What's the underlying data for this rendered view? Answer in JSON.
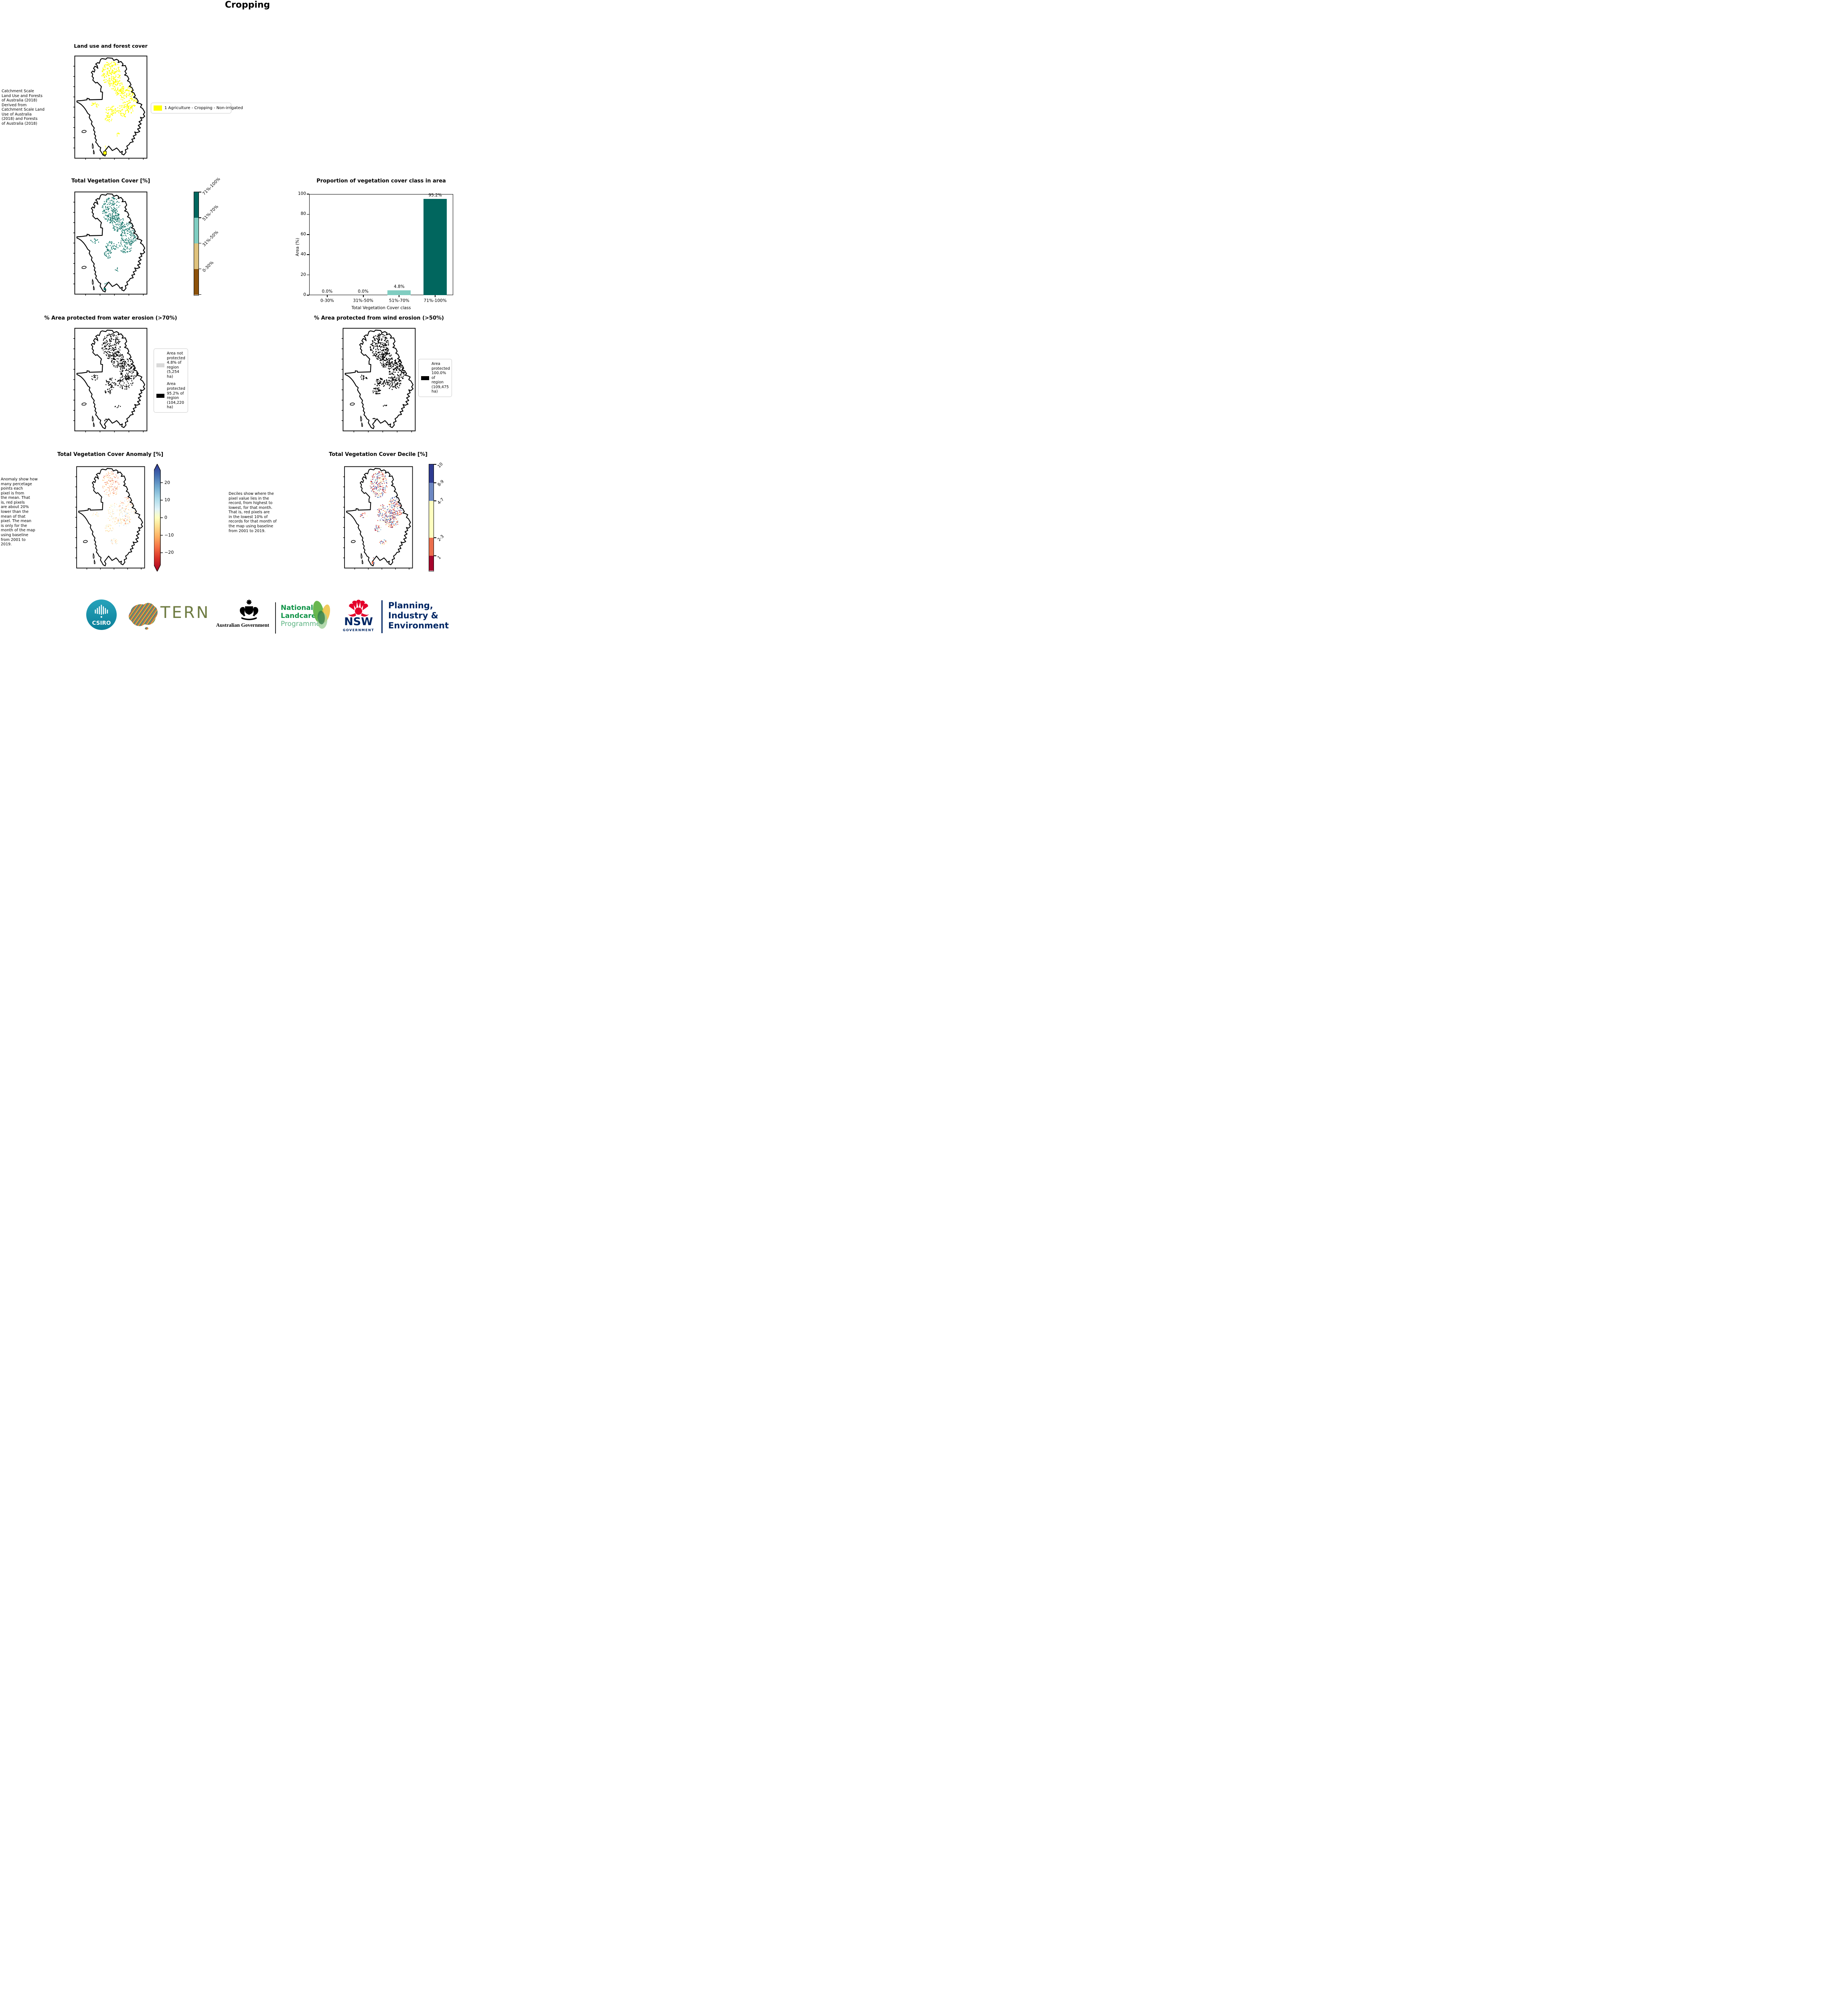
{
  "page": {
    "title": "Cropping"
  },
  "chart_data": {
    "type": "bar",
    "title": "Proportion of vegetation cover class in area",
    "categories": [
      "0-30%",
      "31%-50%",
      "51%-70%",
      "71%-100%"
    ],
    "values": [
      0.0,
      0.0,
      4.8,
      95.2
    ],
    "bar_labels": [
      "0.0%",
      "0.0%",
      "4.8%",
      "95.2%"
    ],
    "bar_colors": [
      "#01665e",
      "#01665e",
      "#80cdc1",
      "#01665e"
    ],
    "xlabel": "Total Vegetation Cover class",
    "ylabel": "Area (%)",
    "ylim": [
      0,
      100
    ],
    "yticks": [
      0,
      20,
      40,
      60,
      80,
      100
    ],
    "grid": false,
    "legend_position": "none"
  },
  "land_use": {
    "title": "Land use and forest cover",
    "note": " Catchment Scale\nLand Use and Forests\nof Australia (2018)\nDerived from\nCatchment Scale Land\nUse of Australia\n(2018) and Forests\nof Australia (2018)",
    "legend_label": "1 Agriculture - Cropping - Non-irrigated",
    "legend_color": "#ffff00"
  },
  "veg_cover": {
    "title": "Total Vegetation Cover [%]",
    "classes": [
      "71%-100%",
      "51%-70%",
      "31%-50%",
      "0-30%"
    ],
    "class_colors": [
      "#01665e",
      "#80cdc1",
      "#dfc27d",
      "#8c510a"
    ]
  },
  "water_erosion": {
    "title": "% Area protected from water erosion (>70%)",
    "legend": [
      {
        "label": "Area not\nprotected\n4.8% of\nregion\n(5,254 ha)",
        "color": "#d9d9d9"
      },
      {
        "label": "Area\nprotected\n95.2% of\nregion\n(104,220\nha)",
        "color": "#000000"
      }
    ]
  },
  "wind_erosion": {
    "title": "% Area protected from wind erosion (>50%)",
    "legend": [
      {
        "label": "Area\nprotected\n100.0% of\nregion\n(109,475\nha)",
        "color": "#000000"
      }
    ]
  },
  "anomaly": {
    "title": "Total Vegetation Cover Anomaly [%]",
    "note": "Anomaly show how\nmany percetage\npoints each\npixel is from\nthe mean. That\nis, red pixels\nare about 20%\nlower than the\nmean of that\npixel. The mean\nis only for the\nmonth of the map\nusing baseline\nfrom 2001 to\n2019.",
    "colorbar_ticks": [
      {
        "value": 20,
        "label": "20"
      },
      {
        "value": 10,
        "label": "10"
      },
      {
        "value": 0,
        "label": "0"
      },
      {
        "value": -10,
        "label": "−10"
      },
      {
        "value": -20,
        "label": "−20"
      }
    ],
    "colorbar_range": [
      -27,
      27
    ]
  },
  "decile": {
    "title": "Total Vegetation Cover Decile [%]",
    "note": "Deciles show where the\npixel value lies in the\nrecord, from highest to\nlowest, for that month.\nThat is, red pixels are\nin the lowest 10% of\nrecords for that month of\nthe map using baseline\nfrom 2001 to 2019.",
    "colorbar_labels": [
      "10",
      "8-9",
      "4-7",
      "2-3",
      "1"
    ],
    "colorbar_colors": [
      "#2d3a8f",
      "#6d87c2",
      "#ffffbf",
      "#ea6e4c",
      "#a5052c"
    ]
  },
  "footer": {
    "csiro": "CSIRO",
    "tern": "TERN",
    "aus_gov": "Australian Government",
    "landcare_lines": [
      "National",
      "Landcare",
      "Programme"
    ],
    "nsw": "NSW",
    "nsw_sub": "GOVERNMENT",
    "planning_lines": [
      "Planning,",
      "Industry &",
      "Environment"
    ]
  }
}
